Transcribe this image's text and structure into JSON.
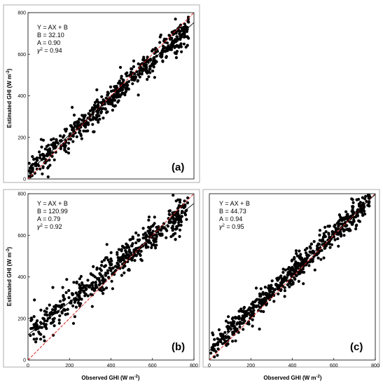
{
  "figure": {
    "xlabel": "Observed GHI (W m",
    "xlabel_sup": "-2",
    "xlabel_close": ")",
    "ylabel": "Estimated GHI (W m",
    "ylabel_sup": "-2",
    "ylabel_close": ")"
  },
  "chart_data": [
    {
      "type": "scatter",
      "panel": "(a)",
      "title": "",
      "xlabel": "",
      "ylabel": "Estimated GHI (W m-2)",
      "xlim": [
        0,
        800
      ],
      "ylim": [
        0,
        800
      ],
      "xticks": [],
      "yticks": [
        0,
        200,
        400,
        600,
        800
      ],
      "stats": {
        "equation": "Y = AX + B",
        "B": "32.10",
        "A": "0.90",
        "r2": "0.94"
      },
      "fit_line": {
        "slope": 0.9,
        "intercept": 32.1
      },
      "reference_line": "1:1",
      "lines_color": {
        "fit": "#000000",
        "one_to_one": "#d62020"
      },
      "n_points": 620,
      "point_cloud_spread": 38
    },
    {
      "type": "scatter",
      "panel": "(b)",
      "title": "",
      "xlabel": "Observed GHI (W m-2)",
      "ylabel": "Estimated GHI (W m-2)",
      "xlim": [
        0,
        800
      ],
      "ylim": [
        0,
        800
      ],
      "xticks": [
        0,
        200,
        400,
        600,
        800
      ],
      "yticks": [
        0,
        200,
        400,
        600,
        800
      ],
      "stats": {
        "equation": "Y = AX + B",
        "B": "120.99",
        "A": "0.79",
        "r2": "0.92"
      },
      "fit_line": {
        "slope": 0.79,
        "intercept": 120.99
      },
      "reference_line": "1:1",
      "lines_color": {
        "fit": "#000000",
        "one_to_one": "#d62020"
      },
      "n_points": 540,
      "point_cloud_spread": 45
    },
    {
      "type": "scatter",
      "panel": "(c)",
      "title": "",
      "xlabel": "Observed GHI (W m-2)",
      "ylabel": "",
      "xlim": [
        0,
        800
      ],
      "ylim": [
        0,
        800
      ],
      "xticks": [
        0,
        200,
        400,
        600,
        800
      ],
      "yticks": [],
      "stats": {
        "equation": "Y = AX + B",
        "B": "44.73",
        "A": "0.94",
        "r2": "0.95"
      },
      "fit_line": {
        "slope": 0.94,
        "intercept": 44.73
      },
      "reference_line": "1:1",
      "lines_color": {
        "fit": "#000000",
        "one_to_one": "#d62020"
      },
      "n_points": 640,
      "point_cloud_spread": 35
    }
  ],
  "labels": {
    "b_label": "B = ",
    "a_label": "A = ",
    "r2_symbol": "γ",
    "r2_sup": "2",
    "r2_eq": " = "
  }
}
